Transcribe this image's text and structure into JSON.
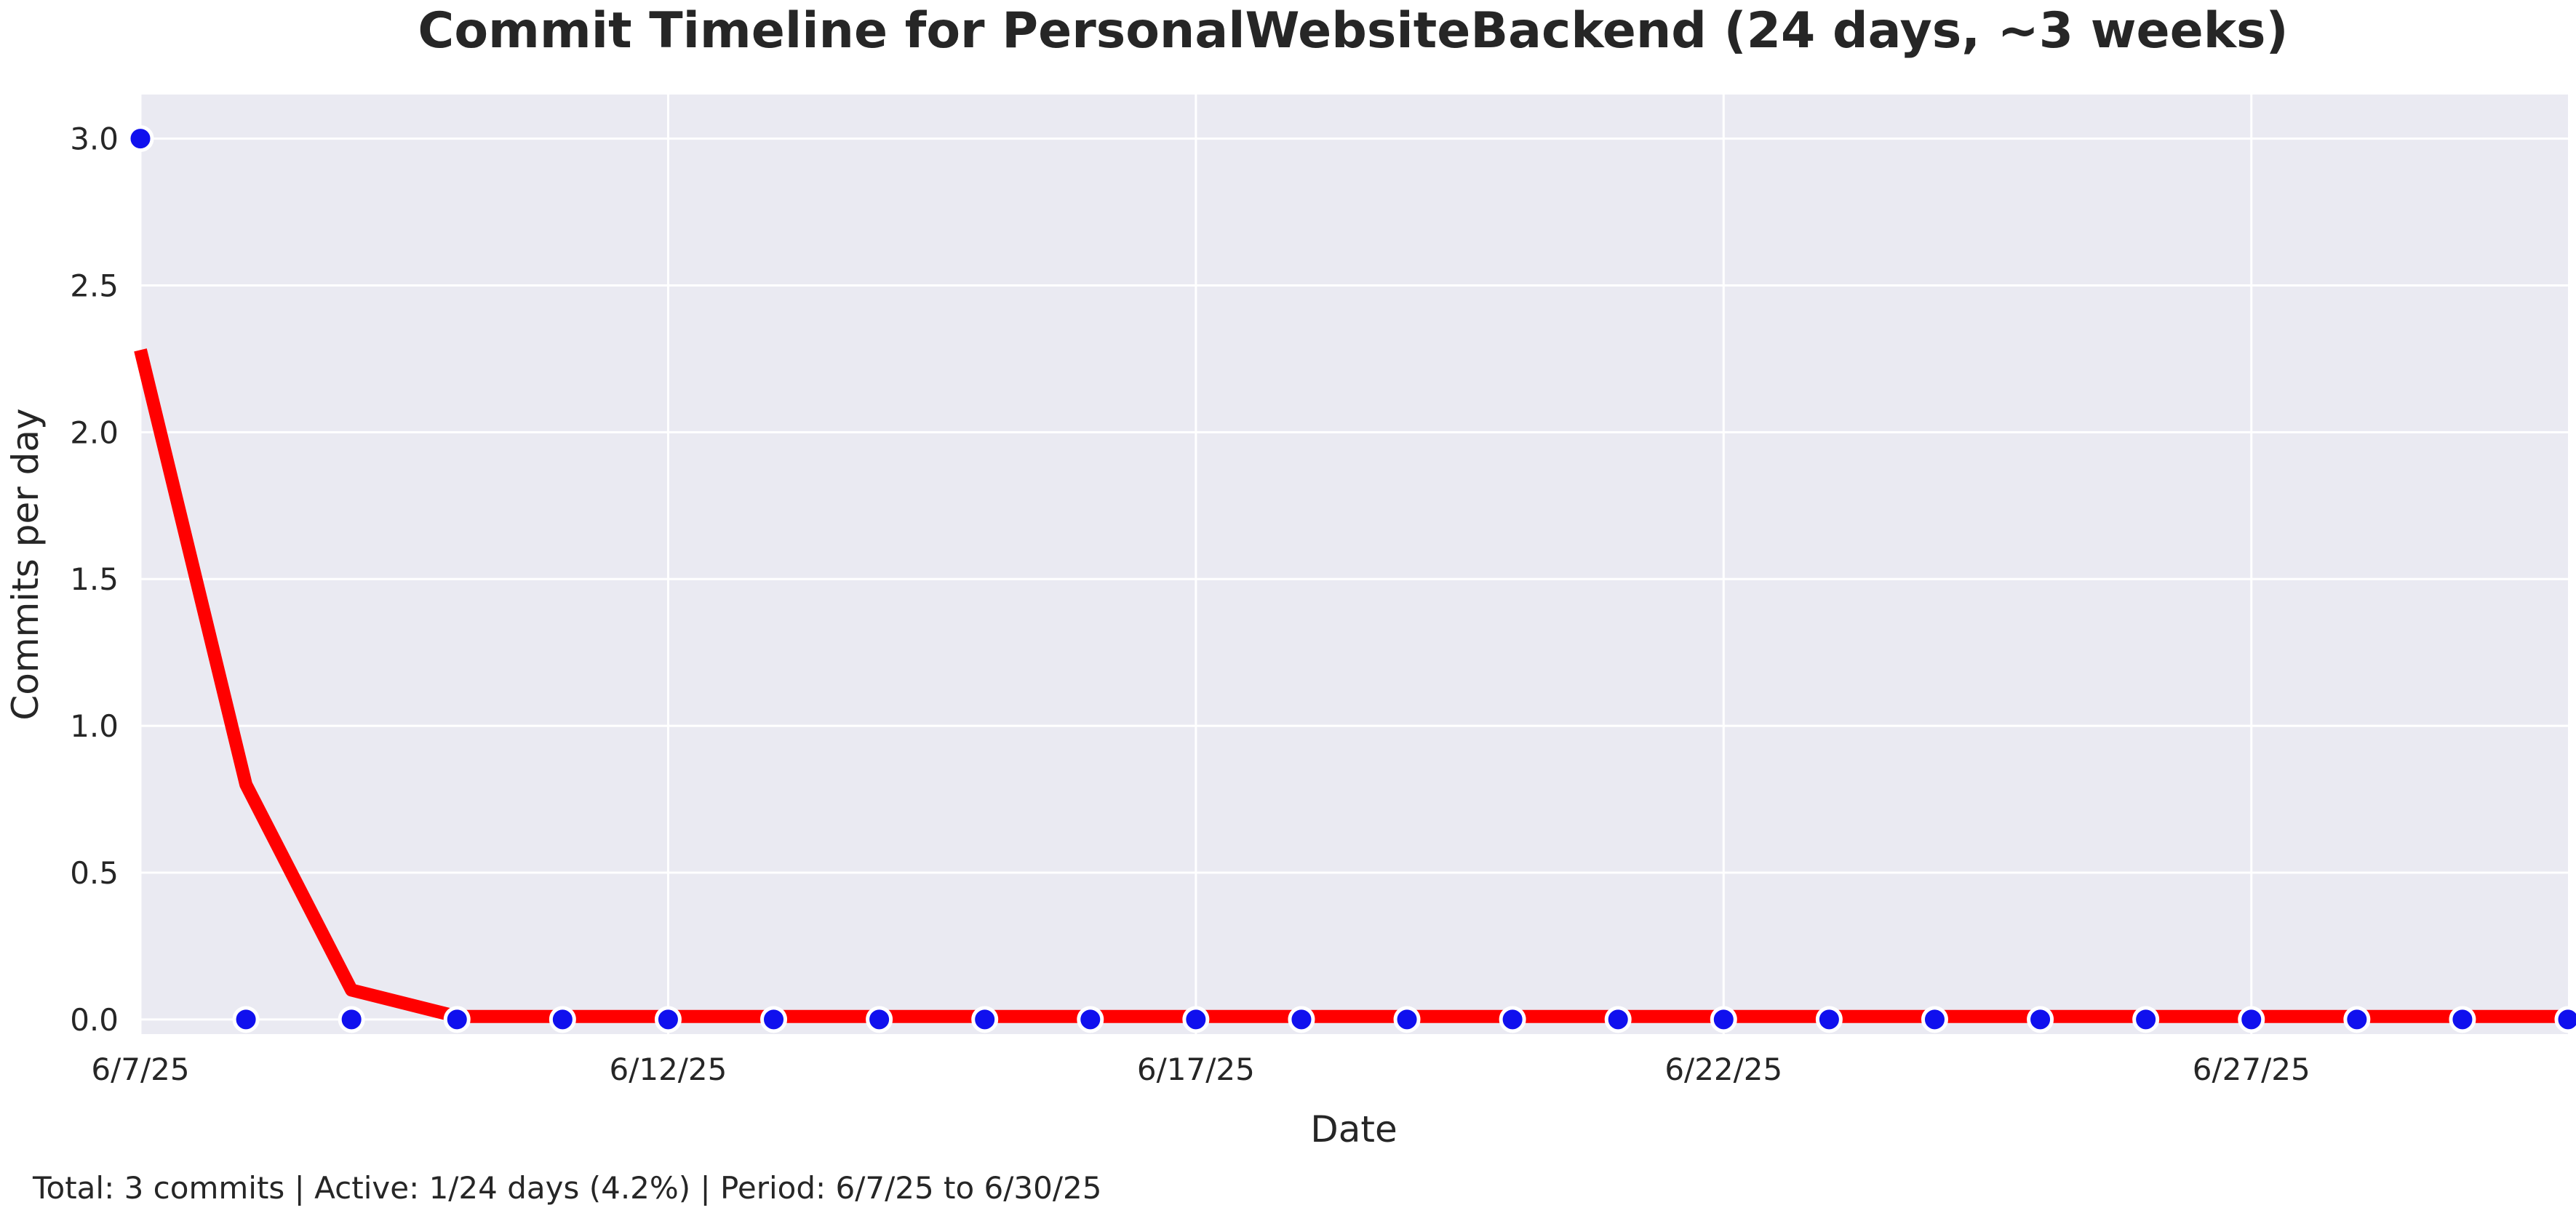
{
  "chart_data": {
    "type": "line",
    "title": "Commit Timeline for PersonalWebsiteBackend (24 days, ~3 weeks)",
    "xlabel": "Date",
    "ylabel": "Commits per day",
    "x": [
      "6/7/25",
      "6/8/25",
      "6/9/25",
      "6/10/25",
      "6/11/25",
      "6/12/25",
      "6/13/25",
      "6/14/25",
      "6/15/25",
      "6/16/25",
      "6/17/25",
      "6/18/25",
      "6/19/25",
      "6/20/25",
      "6/21/25",
      "6/22/25",
      "6/23/25",
      "6/24/25",
      "6/25/25",
      "6/26/25",
      "6/27/25",
      "6/28/25",
      "6/29/25",
      "6/30/25"
    ],
    "x_tick_labels": [
      "6/7/25",
      "6/12/25",
      "6/17/25",
      "6/22/25",
      "6/27/25"
    ],
    "y_ticks": [
      "0.0",
      "0.5",
      "1.0",
      "1.5",
      "2.0",
      "2.5",
      "3.0"
    ],
    "ylim": [
      -0.05,
      3.15
    ],
    "grid": true,
    "series": [
      {
        "kind": "scatter",
        "color": "#1010ee",
        "values": [
          3,
          0,
          0,
          0,
          0,
          0,
          0,
          0,
          0,
          0,
          0,
          0,
          0,
          0,
          0,
          0,
          0,
          0,
          0,
          0,
          0,
          0,
          0,
          0
        ]
      },
      {
        "kind": "line",
        "color": "#ff0000",
        "values": [
          2.28,
          0.8,
          0.1,
          0.01,
          0.01,
          0.01,
          0.01,
          0.01,
          0.01,
          0.01,
          0.01,
          0.01,
          0.01,
          0.01,
          0.01,
          0.01,
          0.01,
          0.01,
          0.01,
          0.01,
          0.01,
          0.01,
          0.01,
          0.01
        ]
      }
    ],
    "background_color": "#eaeaf2",
    "footer": "Total: 3 commits | Active: 1/24 days (4.2%) | Period: 6/7/25 to 6/30/25"
  }
}
